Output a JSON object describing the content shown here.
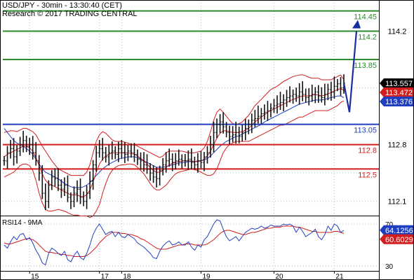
{
  "header": {
    "title": "USD/JPY - 30min - 13:30:40 (CET)",
    "copyright": "Research © 2017 TRADING CENTRAL"
  },
  "colors": {
    "resistance": "#2d8a2d",
    "pivot": "#1f3fbf",
    "support": "#d11f1f",
    "price": "#111111",
    "ma_fast": "#d11f1f",
    "ma_slow": "#1f3fbf",
    "bollinger": "#d11f1f",
    "forecast": "#1a2f9e",
    "rsi": "#1f3fbf",
    "rsi_ma": "#d11f1f",
    "box_current": "#000000",
    "box_red": "#d11f1f",
    "box_blue": "#1f3fbf"
  },
  "chart_data": [
    {
      "type": "line",
      "title": "USD/JPY - 30min",
      "ylim": [
        111.95,
        114.55
      ],
      "y_ticks": [
        112.1,
        112.8,
        114.2
      ],
      "x_ticks": [
        "15",
        "17",
        "18",
        "19",
        "20",
        "21"
      ],
      "x_tick_positions": [
        8,
        30,
        37,
        62,
        85,
        104
      ],
      "levels": [
        {
          "value": 114.45,
          "label": "114.45",
          "kind": "resistance"
        },
        {
          "value": 114.2,
          "label": "114.2",
          "kind": "resistance"
        },
        {
          "value": 113.85,
          "label": "113.85",
          "kind": "resistance"
        },
        {
          "value": 113.05,
          "label": "113.05",
          "kind": "pivot"
        },
        {
          "value": 112.8,
          "label": "112.8",
          "kind": "support"
        },
        {
          "value": 112.5,
          "label": "112.5",
          "kind": "support"
        }
      ],
      "price_boxes": [
        {
          "value": 113.557,
          "label": "113.557",
          "style": "current"
        },
        {
          "value": 113.472,
          "label": "113.472",
          "style": "red"
        },
        {
          "value": 113.376,
          "label": "113.376",
          "style": "blue"
        }
      ],
      "series": [
        {
          "kind": "price",
          "values": [
            112.6,
            112.7,
            112.75,
            112.65,
            112.72,
            112.8,
            112.85,
            112.78,
            112.8,
            112.7,
            112.6,
            112.45,
            112.2,
            112.1,
            112.3,
            112.4,
            112.38,
            112.3,
            112.25,
            112.3,
            112.15,
            112.1,
            112.2,
            112.25,
            112.15,
            112.1,
            112.2,
            112.35,
            112.55,
            112.7,
            112.75,
            112.7,
            112.65,
            112.7,
            112.72,
            112.68,
            112.75,
            112.7,
            112.68,
            112.72,
            112.7,
            112.68,
            112.62,
            112.6,
            112.55,
            112.5,
            112.45,
            112.4,
            112.38,
            112.48,
            112.55,
            112.6,
            112.62,
            112.58,
            112.6,
            112.62,
            112.6,
            112.6,
            112.62,
            112.58,
            112.55,
            112.6,
            112.58,
            112.65,
            112.7,
            112.8,
            112.95,
            113.05,
            113.08,
            113.02,
            112.95,
            112.9,
            112.92,
            112.95,
            112.9,
            112.95,
            113.0,
            113.05,
            113.1,
            113.12,
            113.15,
            113.18,
            113.2,
            113.22,
            113.25,
            113.28,
            113.3,
            113.32,
            113.35,
            113.38,
            113.4,
            113.42,
            113.4,
            113.45,
            113.42,
            113.38,
            113.4,
            113.42,
            113.45,
            113.4,
            113.38,
            113.42,
            113.48,
            113.45,
            113.52,
            113.55,
            113.5,
            113.56
          ]
        },
        {
          "kind": "ma_fast",
          "values": [
            112.65,
            112.68,
            112.7,
            112.72,
            112.74,
            112.76,
            112.78,
            112.78,
            112.76,
            112.72,
            112.64,
            112.54,
            112.44,
            112.36,
            112.32,
            112.3,
            112.28,
            112.26,
            112.24,
            112.22,
            112.2,
            112.18,
            112.18,
            112.18,
            112.16,
            112.16,
            112.18,
            112.24,
            112.34,
            112.46,
            112.56,
            112.62,
            112.66,
            112.68,
            112.7,
            112.7,
            112.7,
            112.7,
            112.7,
            112.7,
            112.69,
            112.68,
            112.66,
            112.63,
            112.6,
            112.56,
            112.52,
            112.48,
            112.46,
            112.46,
            112.48,
            112.52,
            112.55,
            112.57,
            112.58,
            112.59,
            112.6,
            112.6,
            112.6,
            112.6,
            112.59,
            112.59,
            112.6,
            112.62,
            112.66,
            112.72,
            112.8,
            112.88,
            112.94,
            112.97,
            112.97,
            112.96,
            112.95,
            112.95,
            112.95,
            112.96,
            112.98,
            113.0,
            113.04,
            113.08,
            113.11,
            113.14,
            113.17,
            113.2,
            113.22,
            113.24,
            113.26,
            113.28,
            113.3,
            113.32,
            113.34,
            113.36,
            113.37,
            113.39,
            113.4,
            113.4,
            113.4,
            113.41,
            113.42,
            113.41,
            113.4,
            113.41,
            113.43,
            113.44,
            113.46,
            113.48,
            113.49,
            113.47
          ]
        },
        {
          "kind": "ma_slow",
          "values": [
            113.0,
            112.95,
            112.9,
            112.85,
            112.82,
            112.8,
            112.78,
            112.75,
            112.72,
            112.68,
            112.62,
            112.56,
            112.5,
            112.46,
            112.44,
            112.42,
            112.4,
            112.38,
            112.35,
            112.32,
            112.3,
            112.28,
            112.27,
            112.27,
            112.27,
            112.28,
            112.3,
            112.33,
            112.37,
            112.42,
            112.46,
            112.5,
            112.53,
            112.56,
            112.58,
            112.6,
            112.62,
            112.63,
            112.64,
            112.65,
            112.65,
            112.65,
            112.64,
            112.62,
            112.6,
            112.58,
            112.56,
            112.54,
            112.52,
            112.52,
            112.52,
            112.53,
            112.54,
            112.55,
            112.56,
            112.57,
            112.58,
            112.58,
            112.59,
            112.59,
            112.59,
            112.6,
            112.6,
            112.61,
            112.63,
            112.66,
            112.7,
            112.74,
            112.78,
            112.81,
            112.84,
            112.86,
            112.88,
            112.9,
            112.91,
            112.93,
            112.95,
            112.97,
            112.99,
            113.01,
            113.03,
            113.05,
            113.08,
            113.1,
            113.12,
            113.14,
            113.16,
            113.18,
            113.2,
            113.22,
            113.24,
            113.26,
            113.28,
            113.3,
            113.31,
            113.32,
            113.33,
            113.34,
            113.35,
            113.35,
            113.35,
            113.36,
            113.37,
            113.38,
            113.39,
            113.4,
            113.4,
            113.38
          ]
        },
        {
          "kind": "bollinger_upper",
          "values": [
            112.95,
            112.96,
            112.97,
            112.97,
            112.96,
            112.98,
            113.0,
            113.0,
            112.98,
            112.96,
            112.92,
            112.85,
            112.78,
            112.72,
            112.66,
            112.6,
            112.55,
            112.5,
            112.48,
            112.46,
            112.44,
            112.42,
            112.42,
            112.42,
            112.42,
            112.42,
            112.46,
            112.55,
            112.7,
            112.84,
            112.92,
            112.96,
            112.94,
            112.9,
            112.86,
            112.84,
            112.84,
            112.84,
            112.83,
            112.82,
            112.8,
            112.8,
            112.78,
            112.76,
            112.74,
            112.72,
            112.7,
            112.68,
            112.66,
            112.64,
            112.66,
            112.7,
            112.72,
            112.72,
            112.72,
            112.72,
            112.72,
            112.71,
            112.7,
            112.7,
            112.7,
            112.71,
            112.72,
            112.76,
            112.84,
            112.96,
            113.1,
            113.2,
            113.24,
            113.2,
            113.15,
            113.1,
            113.06,
            113.05,
            113.06,
            113.08,
            113.12,
            113.16,
            113.22,
            113.28,
            113.32,
            113.36,
            113.4,
            113.44,
            113.48,
            113.5,
            113.52,
            113.55,
            113.58,
            113.6,
            113.62,
            113.64,
            113.65,
            113.66,
            113.66,
            113.65,
            113.63,
            113.62,
            113.62,
            113.62,
            113.6,
            113.6,
            113.6,
            113.6,
            113.62,
            113.64,
            113.66,
            113.6
          ]
        },
        {
          "kind": "bollinger_lower",
          "values": [
            112.4,
            112.42,
            112.44,
            112.46,
            112.5,
            112.54,
            112.56,
            112.56,
            112.54,
            112.48,
            112.36,
            112.2,
            112.08,
            112.0,
            111.98,
            111.98,
            111.99,
            112.0,
            111.99,
            111.98,
            111.96,
            111.94,
            111.93,
            111.93,
            111.92,
            111.92,
            111.92,
            111.9,
            111.92,
            111.98,
            112.06,
            112.2,
            112.32,
            112.42,
            112.48,
            112.52,
            112.54,
            112.55,
            112.55,
            112.56,
            112.56,
            112.55,
            112.52,
            112.48,
            112.44,
            112.38,
            112.32,
            112.27,
            112.24,
            112.24,
            112.27,
            112.3,
            112.35,
            112.4,
            112.44,
            112.46,
            112.47,
            112.48,
            112.49,
            112.5,
            112.49,
            112.48,
            112.46,
            112.44,
            112.42,
            112.42,
            112.44,
            112.5,
            112.6,
            112.7,
            112.76,
            112.8,
            112.82,
            112.84,
            112.84,
            112.84,
            112.84,
            112.84,
            112.86,
            112.88,
            112.9,
            112.92,
            112.94,
            112.96,
            112.98,
            113.0,
            113.02,
            113.04,
            113.04,
            113.06,
            113.08,
            113.1,
            113.12,
            113.14,
            113.14,
            113.16,
            113.18,
            113.2,
            113.22,
            113.22,
            113.22,
            113.22,
            113.22,
            113.24,
            113.26,
            113.28,
            113.32,
            113.34
          ]
        },
        {
          "kind": "forecast",
          "values": [
            113.56,
            113.2,
            114.2
          ]
        }
      ]
    },
    {
      "type": "line",
      "title": "RSI14 - 9MA",
      "ylim": [
        26,
        76
      ],
      "y_ticks": [
        70,
        30
      ],
      "x_ticks": [
        "15",
        "17",
        "18",
        "19",
        "20",
        "21"
      ],
      "x_tick_positions": [
        8,
        30,
        37,
        62,
        85,
        104
      ],
      "levels": [
        {
          "value": 70,
          "label": "70",
          "kind": "ref"
        },
        {
          "value": 30,
          "label": "30",
          "kind": "ref"
        }
      ],
      "price_boxes": [
        {
          "value": 64.1256,
          "label": "64.1256",
          "style": "blue"
        },
        {
          "value": 60.6029,
          "label": "60.6029",
          "style": "red"
        }
      ],
      "series": [
        {
          "name": "RSI14",
          "kind": "rsi",
          "values": [
            50,
            47,
            53,
            58,
            55,
            60,
            61,
            55,
            57,
            52,
            45,
            40,
            33,
            31,
            42,
            47,
            45,
            42,
            40,
            44,
            36,
            34,
            40,
            44,
            38,
            36,
            42,
            50,
            60,
            66,
            70,
            65,
            60,
            62,
            63,
            58,
            62,
            58,
            57,
            60,
            58,
            56,
            52,
            50,
            48,
            45,
            42,
            38,
            37,
            44,
            49,
            52,
            54,
            50,
            51,
            53,
            50,
            50,
            53,
            48,
            45,
            50,
            48,
            55,
            58,
            64,
            70,
            74,
            73,
            65,
            58,
            54,
            56,
            58,
            54,
            58,
            62,
            64,
            66,
            65,
            66,
            68,
            66,
            67,
            69,
            68,
            68,
            68,
            70,
            69,
            70,
            68,
            62,
            67,
            63,
            58,
            60,
            62,
            65,
            58,
            55,
            60,
            68,
            64,
            70,
            68,
            62,
            64
          ]
        },
        {
          "name": "9MA",
          "kind": "rsi_ma",
          "values": [
            52,
            51,
            51,
            52,
            53,
            54,
            55,
            56,
            56,
            55,
            53,
            50,
            47,
            44,
            43,
            43,
            42,
            42,
            41,
            41,
            40,
            40,
            39,
            39,
            39,
            39,
            40,
            42,
            45,
            48,
            52,
            55,
            58,
            60,
            62,
            62,
            62,
            61,
            61,
            60,
            60,
            59,
            58,
            56,
            55,
            53,
            51,
            49,
            47,
            46,
            46,
            46,
            47,
            48,
            49,
            50,
            50,
            51,
            51,
            51,
            50,
            50,
            50,
            50,
            51,
            53,
            55,
            58,
            61,
            63,
            64,
            64,
            63,
            62,
            61,
            60,
            60,
            61,
            62,
            62,
            63,
            64,
            65,
            66,
            66,
            67,
            67,
            67,
            68,
            68,
            68,
            68,
            67,
            67,
            66,
            65,
            64,
            63,
            63,
            62,
            62,
            62,
            62,
            62,
            63,
            63,
            62,
            61
          ]
        }
      ]
    }
  ]
}
